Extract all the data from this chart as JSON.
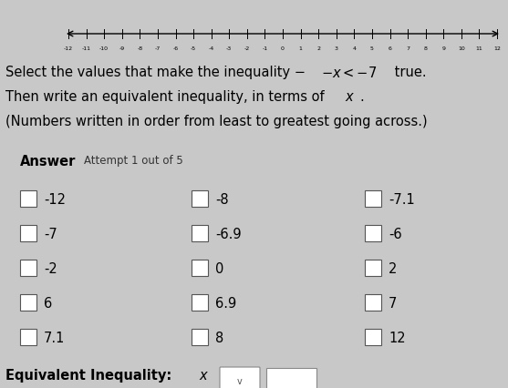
{
  "bg_color": "#c8c8c8",
  "title_line1": "Select the values that make the inequality −x < −7 true.",
  "title_line2": "Then write an equivalent inequality, in terms of x.",
  "title_line3": "(Numbers written in order from least to greatest going across.)",
  "answer_label": "Answer",
  "attempt_label": "Attempt 1 out of 5",
  "checkboxes": [
    [
      "-12",
      "-8",
      "-7.1"
    ],
    [
      "-7",
      "-6.9",
      "-6"
    ],
    [
      "-2",
      "0",
      "2"
    ],
    [
      "6",
      "6.9",
      "7"
    ],
    [
      "7.1",
      "8",
      "12"
    ]
  ],
  "equiv_prefix": "Equivalent Inequality: x",
  "number_line_ticks": [
    -12,
    -11,
    -10,
    -9,
    -8,
    -7,
    -6,
    -5,
    -4,
    -3,
    -2,
    -1,
    0,
    1,
    2,
    3,
    4,
    5,
    6,
    7,
    8,
    9,
    10,
    11,
    12
  ]
}
